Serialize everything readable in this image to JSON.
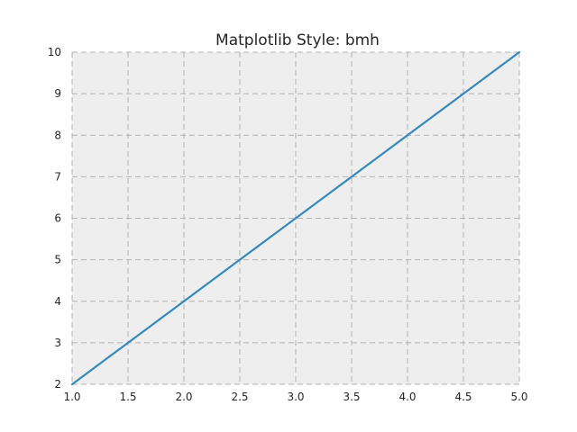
{
  "chart_data": {
    "type": "line",
    "title": "Matplotlib Style: bmh",
    "xlabel": "",
    "ylabel": "",
    "xlim": [
      1.0,
      5.0
    ],
    "ylim": [
      2,
      10
    ],
    "x_ticks": [
      "1.0",
      "1.5",
      "2.0",
      "2.5",
      "3.0",
      "3.5",
      "4.0",
      "4.5",
      "5.0"
    ],
    "y_ticks": [
      "2",
      "3",
      "4",
      "5",
      "6",
      "7",
      "8",
      "9",
      "10"
    ],
    "grid": true,
    "legend": "none",
    "series": [
      {
        "x": [
          1,
          2,
          3,
          4,
          5
        ],
        "y": [
          2,
          4,
          6,
          8,
          10
        ],
        "color": "#348ABD"
      }
    ],
    "colors": {
      "plot_background": "#eeeeee",
      "grid": "#b2b2b2",
      "text": "#262626"
    }
  }
}
